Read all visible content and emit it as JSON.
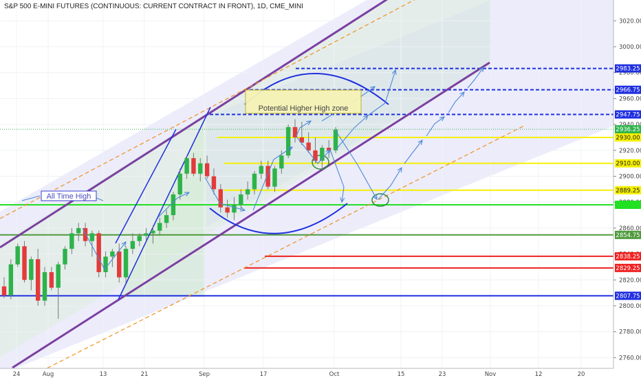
{
  "title": "S&P 500 E-MINI FUTURES (CONTINUOUS: CURRENT CONTRACT IN FRONT), 1D, CME_MINI",
  "colors": {
    "up": "#2db34a",
    "down": "#e23b3b",
    "channel": "#7b3fa1",
    "channel_dash": "#f0901e",
    "blue_line": "#1f2fe0",
    "yellow": "#f5f000",
    "green_line": "#22e022",
    "dark_green": "#4f9a3c",
    "red_line": "#ef2020",
    "arrow": "#4f88d6",
    "zone_fill": "#f6f3b5"
  },
  "annotations": {
    "all_time_high": "All Time High",
    "higher_high_zone": "Potential Higher High zone"
  },
  "chart_data": {
    "type": "candlestick",
    "title": "S&P 500 E-MINI FUTURES (CONTINUOUS: CURRENT CONTRACT IN FRONT), 1D, CME_MINI",
    "y_ticks": [
      2760,
      2780,
      2800,
      2820,
      2840,
      2860,
      2880,
      2900,
      2920,
      2940,
      2960,
      2980,
      3000,
      3020
    ],
    "ylim": [
      2750,
      3030
    ],
    "x_ticks": [
      "24",
      "Aug",
      "13",
      "21",
      "Sep",
      "17",
      "Oct",
      "15",
      "23",
      "Nov",
      "12",
      "20"
    ],
    "candles": [
      {
        "o": 2815,
        "h": 2822,
        "l": 2806,
        "c": 2808
      },
      {
        "o": 2808,
        "h": 2836,
        "l": 2805,
        "c": 2832
      },
      {
        "o": 2832,
        "h": 2848,
        "l": 2830,
        "c": 2846
      },
      {
        "o": 2846,
        "h": 2850,
        "l": 2818,
        "c": 2820
      },
      {
        "o": 2820,
        "h": 2838,
        "l": 2812,
        "c": 2836
      },
      {
        "o": 2836,
        "h": 2844,
        "l": 2800,
        "c": 2804
      },
      {
        "o": 2804,
        "h": 2830,
        "l": 2800,
        "c": 2826
      },
      {
        "o": 2826,
        "h": 2830,
        "l": 2812,
        "c": 2814
      },
      {
        "o": 2814,
        "h": 2834,
        "l": 2790,
        "c": 2832
      },
      {
        "o": 2832,
        "h": 2846,
        "l": 2828,
        "c": 2844
      },
      {
        "o": 2844,
        "h": 2860,
        "l": 2840,
        "c": 2856
      },
      {
        "o": 2856,
        "h": 2864,
        "l": 2850,
        "c": 2860
      },
      {
        "o": 2860,
        "h": 2864,
        "l": 2846,
        "c": 2850
      },
      {
        "o": 2850,
        "h": 2858,
        "l": 2838,
        "c": 2856
      },
      {
        "o": 2856,
        "h": 2858,
        "l": 2822,
        "c": 2826
      },
      {
        "o": 2826,
        "h": 2842,
        "l": 2822,
        "c": 2838
      },
      {
        "o": 2838,
        "h": 2844,
        "l": 2830,
        "c": 2842
      },
      {
        "o": 2842,
        "h": 2848,
        "l": 2818,
        "c": 2822
      },
      {
        "o": 2822,
        "h": 2846,
        "l": 2818,
        "c": 2844
      },
      {
        "o": 2844,
        "h": 2856,
        "l": 2840,
        "c": 2850
      },
      {
        "o": 2850,
        "h": 2856,
        "l": 2846,
        "c": 2854
      },
      {
        "o": 2854,
        "h": 2860,
        "l": 2850,
        "c": 2856
      },
      {
        "o": 2856,
        "h": 2862,
        "l": 2848,
        "c": 2858
      },
      {
        "o": 2858,
        "h": 2868,
        "l": 2854,
        "c": 2864
      },
      {
        "o": 2864,
        "h": 2874,
        "l": 2860,
        "c": 2870
      },
      {
        "o": 2870,
        "h": 2888,
        "l": 2866,
        "c": 2886
      },
      {
        "o": 2886,
        "h": 2906,
        "l": 2882,
        "c": 2902
      },
      {
        "o": 2902,
        "h": 2916,
        "l": 2898,
        "c": 2914
      },
      {
        "o": 2914,
        "h": 2918,
        "l": 2900,
        "c": 2902
      },
      {
        "o": 2902,
        "h": 2914,
        "l": 2896,
        "c": 2910
      },
      {
        "o": 2910,
        "h": 2916,
        "l": 2898,
        "c": 2900
      },
      {
        "o": 2900,
        "h": 2906,
        "l": 2886,
        "c": 2890
      },
      {
        "o": 2890,
        "h": 2894,
        "l": 2872,
        "c": 2876
      },
      {
        "o": 2876,
        "h": 2882,
        "l": 2868,
        "c": 2872
      },
      {
        "o": 2872,
        "h": 2884,
        "l": 2866,
        "c": 2878
      },
      {
        "o": 2878,
        "h": 2890,
        "l": 2874,
        "c": 2886
      },
      {
        "o": 2886,
        "h": 2896,
        "l": 2882,
        "c": 2890
      },
      {
        "o": 2890,
        "h": 2904,
        "l": 2886,
        "c": 2902
      },
      {
        "o": 2902,
        "h": 2912,
        "l": 2898,
        "c": 2908
      },
      {
        "o": 2908,
        "h": 2912,
        "l": 2890,
        "c": 2892
      },
      {
        "o": 2892,
        "h": 2908,
        "l": 2888,
        "c": 2906
      },
      {
        "o": 2906,
        "h": 2920,
        "l": 2902,
        "c": 2916
      },
      {
        "o": 2916,
        "h": 2940,
        "l": 2914,
        "c": 2938
      },
      {
        "o": 2938,
        "h": 2944,
        "l": 2926,
        "c": 2930
      },
      {
        "o": 2930,
        "h": 2942,
        "l": 2924,
        "c": 2926
      },
      {
        "o": 2926,
        "h": 2934,
        "l": 2918,
        "c": 2920
      },
      {
        "o": 2920,
        "h": 2930,
        "l": 2910,
        "c": 2912
      },
      {
        "o": 2912,
        "h": 2924,
        "l": 2904,
        "c": 2922
      },
      {
        "o": 2922,
        "h": 2928,
        "l": 2914,
        "c": 2920
      },
      {
        "o": 2920,
        "h": 2938,
        "l": 2918,
        "c": 2936
      }
    ],
    "price_labels": [
      {
        "value": 2983.25,
        "label": "2983.25",
        "color": "#1f2fe0",
        "style": "dashed"
      },
      {
        "value": 2966.75,
        "label": "2966.75",
        "color": "#1f2fe0",
        "style": "dashed"
      },
      {
        "value": 2947.75,
        "label": "2947.75",
        "color": "#1f2fe0",
        "style": "dashed"
      },
      {
        "value": 2936.25,
        "label": "2936.25",
        "color": "#2db34a",
        "style": "dotted"
      },
      {
        "value": 2930.0,
        "label": "2930.00",
        "color": "#f5f000",
        "style": "solid"
      },
      {
        "value": 2910.0,
        "label": "2910.00",
        "color": "#f5f000",
        "style": "solid"
      },
      {
        "value": 2889.25,
        "label": "2889.25",
        "color": "#f5f000",
        "style": "solid"
      },
      {
        "value": 2878.0,
        "label": "",
        "color": "#22e022",
        "style": "solid"
      },
      {
        "value": 2854.75,
        "label": "2854.75",
        "color": "#4f9a3c",
        "style": "solid"
      },
      {
        "value": 2838.25,
        "label": "2838.25",
        "color": "#ef2020",
        "style": "solid"
      },
      {
        "value": 2829.25,
        "label": "2829.25",
        "color": "#ef2020",
        "style": "solid"
      },
      {
        "value": 2807.75,
        "label": "2807.75",
        "color": "#1f2fe0",
        "style": "solid"
      }
    ]
  }
}
